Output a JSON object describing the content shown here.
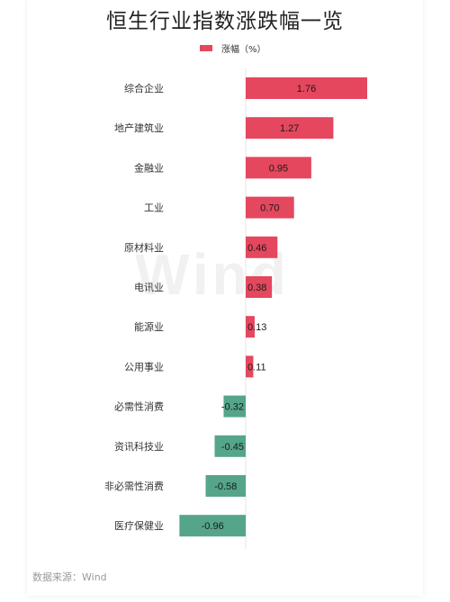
{
  "chart_data": {
    "type": "bar",
    "orientation": "horizontal",
    "title": "恒生行业指数涨跌幅一览",
    "legend": "涨幅（%）",
    "categories": [
      "综合企业",
      "地产建筑业",
      "金融业",
      "工业",
      "原材料业",
      "电讯业",
      "能源业",
      "公用事业",
      "必需性消费",
      "资讯科技业",
      "非必需性消费",
      "医疗保健业"
    ],
    "values": [
      1.76,
      1.27,
      0.95,
      0.7,
      0.46,
      0.38,
      0.13,
      0.11,
      -0.32,
      -0.45,
      -0.58,
      -0.96
    ],
    "value_labels": [
      "1.76",
      "1.27",
      "0.95",
      "0.70",
      "0.46",
      "0.38",
      "0.13",
      "0.11",
      "-0.32",
      "-0.45",
      "-0.58",
      "-0.96"
    ],
    "colors": {
      "positive": "#e4475e",
      "negative": "#55a58a"
    },
    "watermark": "Wind",
    "source": "数据来源：Wind"
  }
}
